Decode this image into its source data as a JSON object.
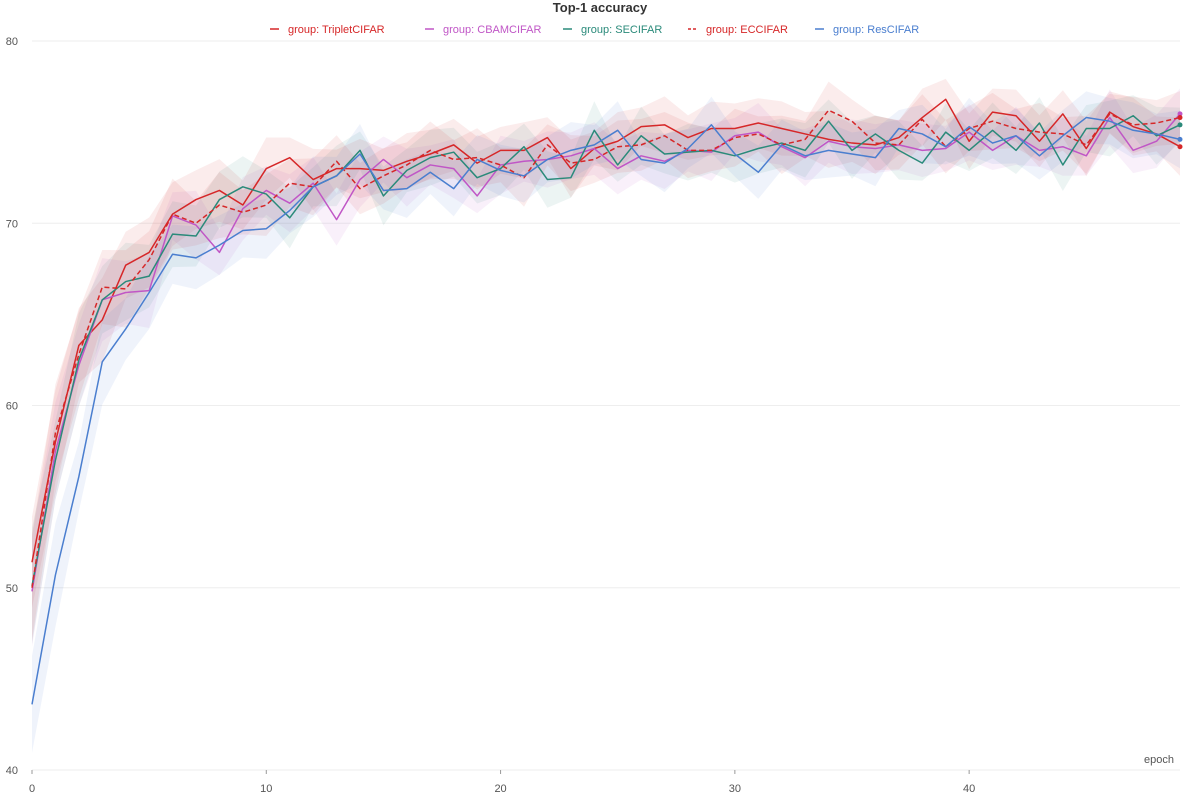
{
  "chart_data": {
    "type": "line",
    "title": "Top-1 accuracy",
    "xlabel": "epoch",
    "ylabel": "",
    "xlim": [
      0,
      49
    ],
    "ylim": [
      40,
      80
    ],
    "xticks": [
      0,
      10,
      20,
      30,
      40
    ],
    "yticks": [
      40,
      50,
      60,
      70,
      80
    ],
    "grid": true,
    "legend_position": "top",
    "x": [
      0,
      1,
      2,
      3,
      4,
      5,
      6,
      7,
      8,
      9,
      10,
      11,
      12,
      13,
      14,
      15,
      16,
      17,
      18,
      19,
      20,
      21,
      22,
      23,
      24,
      25,
      26,
      27,
      28,
      29,
      30,
      31,
      32,
      33,
      34,
      35,
      36,
      37,
      38,
      39,
      40,
      41,
      42,
      43,
      44,
      45,
      46,
      47,
      48,
      49
    ],
    "series": [
      {
        "name": "group: TripletCIFAR",
        "color": "#d62728",
        "dash": "solid",
        "values": [
          51.4,
          58.0,
          63.3,
          64.7,
          67.7,
          68.4,
          70.5,
          71.3,
          71.8,
          71.0,
          73.0,
          73.6,
          72.4,
          73.0,
          73.0,
          72.9,
          73.4,
          73.8,
          74.3,
          73.3,
          74.0,
          74.0,
          74.7,
          73.0,
          74.1,
          74.5,
          75.3,
          75.4,
          74.7,
          75.2,
          75.2,
          75.5,
          75.2,
          74.9,
          74.6,
          74.4,
          74.3,
          74.7,
          75.8,
          76.8,
          74.5,
          76.1,
          75.9,
          74.5,
          76.0,
          74.1,
          76.1,
          75.3,
          74.9,
          74.2
        ]
      },
      {
        "name": "group: CBAMCIFAR",
        "color": "#c056c6",
        "dash": "solid",
        "values": [
          49.8,
          57.5,
          62.2,
          65.8,
          66.2,
          66.3,
          70.4,
          69.9,
          68.4,
          70.8,
          71.8,
          71.1,
          72.2,
          70.2,
          72.4,
          73.5,
          72.5,
          73.2,
          73.0,
          71.5,
          73.2,
          73.4,
          73.5,
          73.7,
          74.1,
          73.0,
          73.7,
          73.4,
          74.0,
          73.9,
          74.8,
          75.0,
          74.2,
          73.6,
          74.5,
          74.2,
          74.1,
          74.3,
          74.0,
          74.1,
          75.0,
          74.0,
          74.8,
          74.0,
          74.2,
          73.7,
          75.8,
          74.0,
          74.5,
          76.0
        ]
      },
      {
        "name": "group: SECIFAR",
        "color": "#2a8a7a",
        "dash": "solid",
        "values": [
          50.1,
          57.0,
          62.5,
          65.8,
          66.8,
          67.1,
          69.4,
          69.3,
          71.3,
          72.0,
          71.6,
          70.3,
          72.0,
          72.6,
          74.0,
          71.5,
          72.9,
          73.6,
          73.9,
          72.5,
          73.0,
          74.2,
          72.4,
          72.5,
          75.1,
          73.2,
          74.8,
          73.8,
          73.9,
          74.0,
          73.7,
          74.1,
          74.4,
          74.0,
          75.6,
          74.0,
          74.9,
          74.0,
          73.3,
          75.0,
          74.0,
          75.1,
          74.0,
          75.5,
          73.2,
          75.2,
          75.2,
          75.9,
          74.8,
          75.4
        ]
      },
      {
        "name": "group: ECCIFAR",
        "color": "#d62728",
        "dash": "dashed",
        "values": [
          50.0,
          58.5,
          62.8,
          66.5,
          66.4,
          68.0,
          70.5,
          70.0,
          71.0,
          70.6,
          71.0,
          72.2,
          72.0,
          73.4,
          71.9,
          72.6,
          73.2,
          74.0,
          73.5,
          73.6,
          73.2,
          72.5,
          74.3,
          73.3,
          73.5,
          74.2,
          74.3,
          74.8,
          74.0,
          74.0,
          74.7,
          74.9,
          74.3,
          74.6,
          76.2,
          75.6,
          74.4,
          74.3,
          75.7,
          74.2,
          75.2,
          75.6,
          75.2,
          75.0,
          74.9,
          74.3,
          76.0,
          75.4,
          75.5,
          75.8
        ]
      },
      {
        "name": "group: ResCIFAR",
        "color": "#4a7ecf",
        "dash": "solid",
        "values": [
          43.6,
          50.7,
          56.1,
          62.4,
          64.2,
          66.2,
          68.3,
          68.1,
          68.8,
          69.6,
          69.7,
          70.7,
          72.0,
          72.6,
          73.8,
          71.8,
          71.9,
          72.8,
          71.9,
          73.5,
          72.9,
          72.6,
          73.5,
          74.0,
          74.3,
          75.1,
          73.5,
          73.3,
          74.1,
          75.4,
          73.8,
          72.8,
          74.3,
          73.7,
          74.0,
          73.8,
          73.6,
          75.2,
          74.9,
          74.2,
          75.3,
          74.4,
          74.8,
          73.7,
          74.8,
          75.8,
          75.6,
          75.1,
          74.9,
          74.6
        ]
      }
    ]
  }
}
